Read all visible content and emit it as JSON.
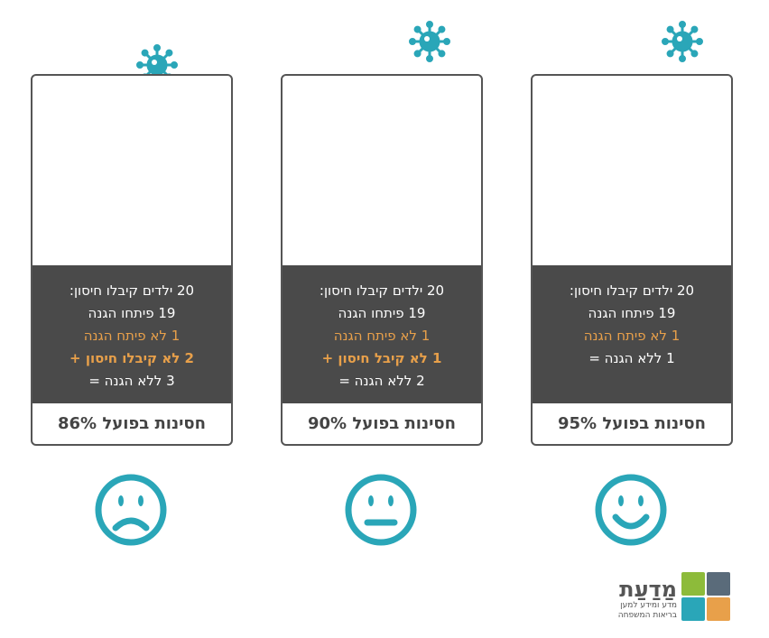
{
  "panels": [
    {
      "lines": [
        {
          "text": "20 ילדים קיבלו חיסון:",
          "color": "#ffffff"
        },
        {
          "text": "19 פיתחו הגנה",
          "color": "#ffffff"
        },
        {
          "text": "1 לא פיתח הגנה",
          "color": "#e8a04a"
        },
        {
          "text": "2 לא קיבלו חיסון +",
          "color": "#e8a04a"
        },
        {
          "text": "3 ללא הגנה =",
          "color": "#ffffff"
        }
      ],
      "effectiveness": "חסינות בפועל 86%"
    },
    {
      "lines": [
        {
          "text": "20 ילדים קיבלו חיסון:",
          "color": "#ffffff"
        },
        {
          "text": "19 פיתחו הגנה",
          "color": "#ffffff"
        },
        {
          "text": "1 לא פיתח הגנה",
          "color": "#e8a04a"
        },
        {
          "text": "1 לא קיבל חיסון +",
          "color": "#e8a04a"
        },
        {
          "text": "2 ללא הגנה =",
          "color": "#ffffff"
        }
      ],
      "effectiveness": "חסינות בפועל 90%"
    },
    {
      "lines": [
        {
          "text": "20 ילדים קיבלו חיסון:",
          "color": "#ffffff"
        },
        {
          "text": "19 פיתחו הגנה",
          "color": "#ffffff"
        },
        {
          "text": "1 לא פיתח הגנה",
          "color": "#e8a04a"
        },
        {
          "text": "1 ללא הגנה =",
          "color": "#ffffff"
        }
      ],
      "effectiveness": "חסינות בפועל 95%"
    }
  ],
  "logo": {
    "name": "מַדַעַת",
    "tagline": [
      "מדע ומידע למען",
      "בריאות המשפחה"
    ]
  }
}
